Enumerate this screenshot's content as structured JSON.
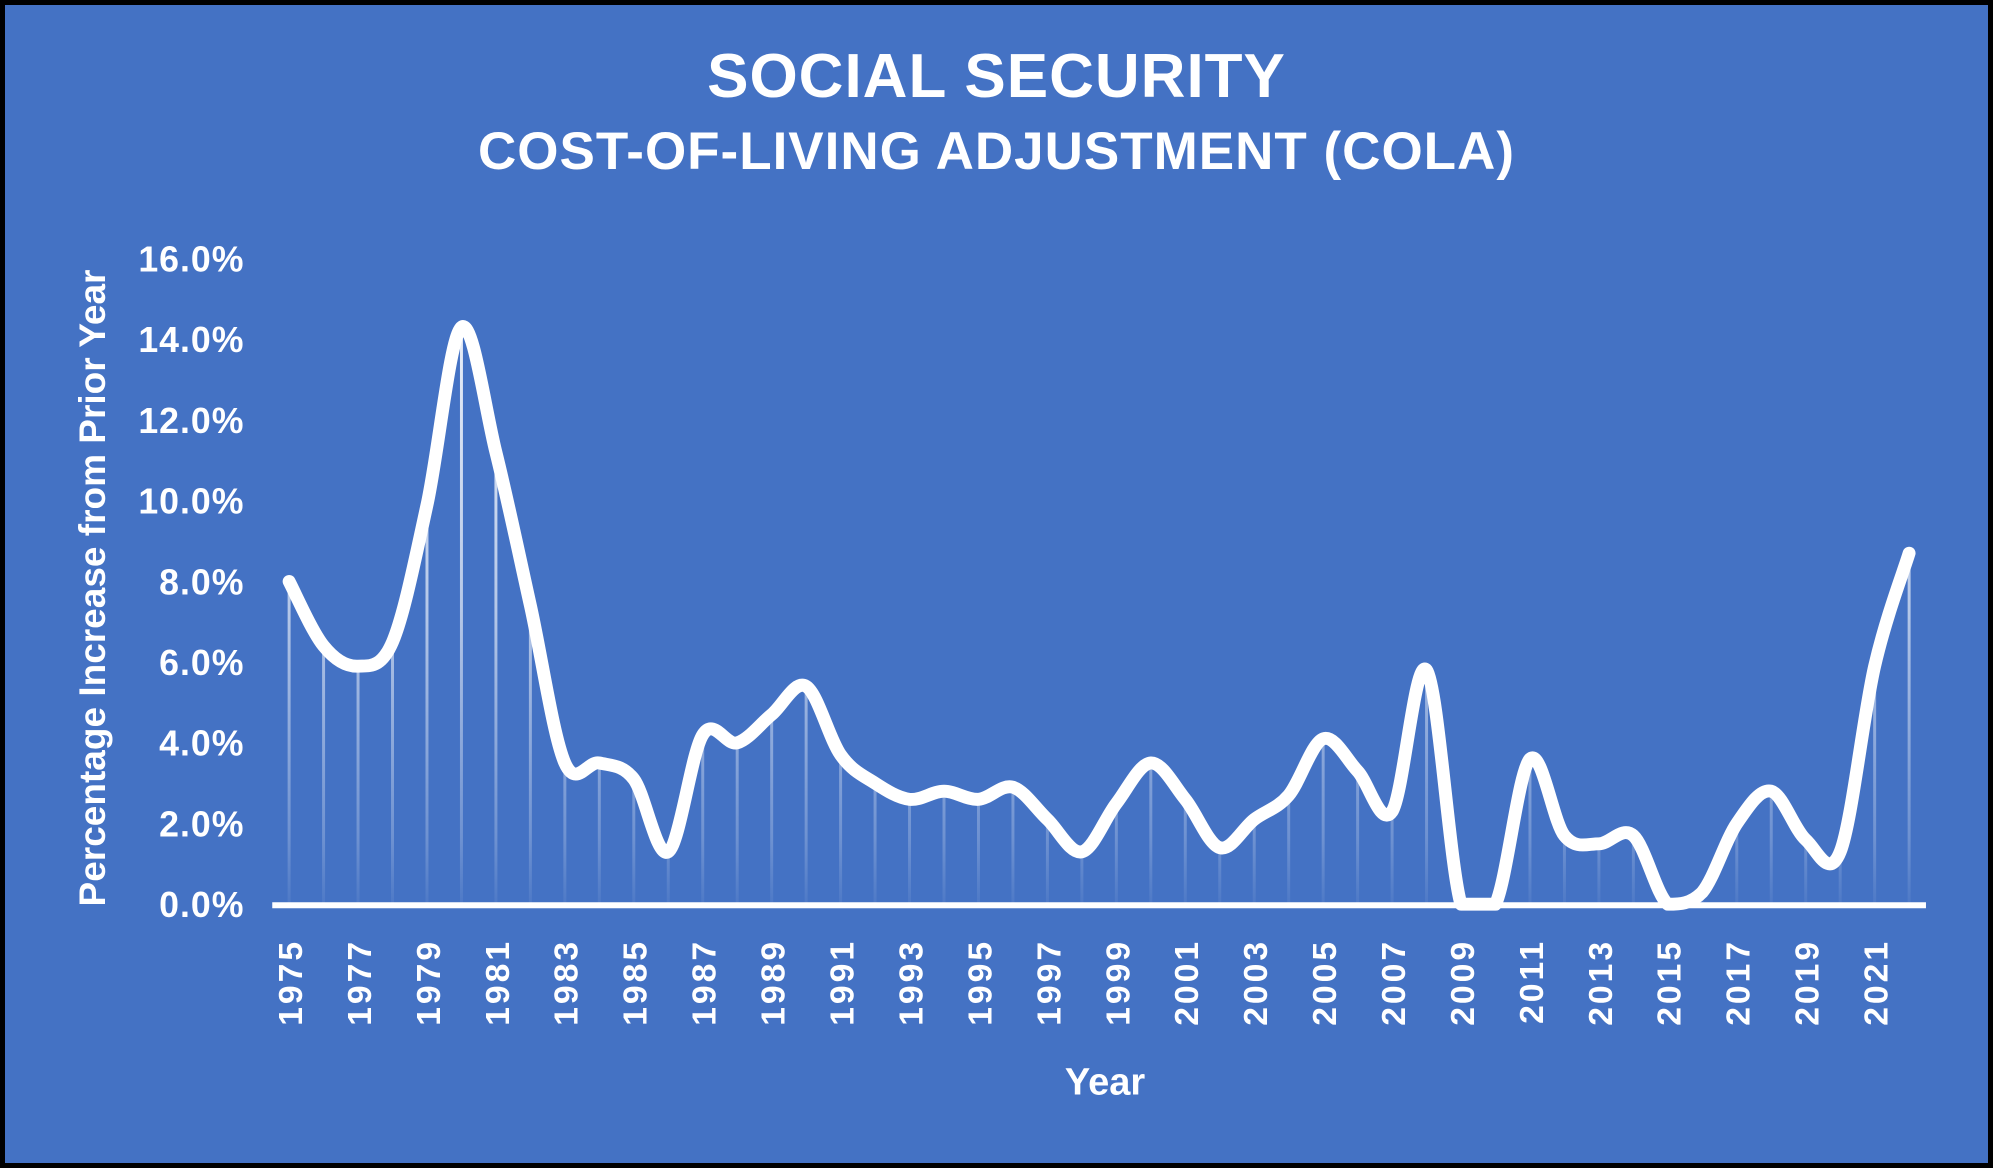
{
  "header": {
    "title": "SOCIAL SECURITY",
    "subtitle": "COST-OF-LIVING ADJUSTMENT (COLA)"
  },
  "colors": {
    "background": "#4472C4",
    "line": "#FFFFFF",
    "text": "#FFFFFF",
    "axis": "#FFFFFF"
  },
  "chart_data": {
    "type": "line",
    "title": "SOCIAL SECURITY COST-OF-LIVING ADJUSTMENT (COLA)",
    "xlabel": "Year",
    "ylabel": "Percentage Increase from Prior Year",
    "x": [
      1975,
      1976,
      1977,
      1978,
      1979,
      1980,
      1981,
      1982,
      1983,
      1984,
      1985,
      1986,
      1987,
      1988,
      1989,
      1990,
      1991,
      1992,
      1993,
      1994,
      1995,
      1996,
      1997,
      1998,
      1999,
      2000,
      2001,
      2002,
      2003,
      2004,
      2005,
      2006,
      2007,
      2008,
      2009,
      2010,
      2011,
      2012,
      2013,
      2014,
      2015,
      2016,
      2017,
      2018,
      2019,
      2020,
      2021,
      2022
    ],
    "values": [
      8.0,
      6.4,
      5.9,
      6.5,
      9.9,
      14.3,
      11.2,
      7.4,
      3.5,
      3.5,
      3.1,
      1.3,
      4.2,
      4.0,
      4.7,
      5.4,
      3.7,
      3.0,
      2.6,
      2.8,
      2.6,
      2.9,
      2.1,
      1.3,
      2.5,
      3.5,
      2.6,
      1.4,
      2.1,
      2.7,
      4.1,
      3.3,
      2.3,
      5.8,
      0.0,
      0.0,
      3.6,
      1.7,
      1.5,
      1.7,
      0.0,
      0.3,
      2.0,
      2.8,
      1.6,
      1.3,
      5.9,
      8.7
    ],
    "units": "%",
    "ylim": [
      0,
      16
    ],
    "ytick_step": 2,
    "ytick_labels": [
      "0.0%",
      "2.0%",
      "4.0%",
      "6.0%",
      "8.0%",
      "10.0%",
      "12.0%",
      "14.0%",
      "16.0%"
    ],
    "xtick_labels": [
      "1975",
      "1977",
      "1979",
      "1981",
      "1983",
      "1985",
      "1987",
      "1989",
      "1991",
      "1993",
      "1995",
      "1997",
      "1999",
      "2001",
      "2003",
      "2005",
      "2007",
      "2009",
      "2011",
      "2013",
      "2015",
      "2017",
      "2019",
      "2021"
    ],
    "xtick_rotation": -90,
    "grid": false,
    "legend": false,
    "smoothed_line": true,
    "drop_lines": true,
    "line_width": 13
  }
}
